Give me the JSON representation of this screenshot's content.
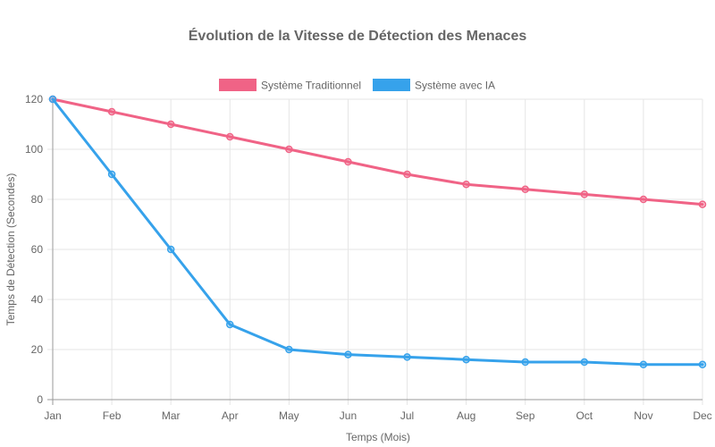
{
  "chart_data": {
    "type": "line",
    "title": "Évolution de la Vitesse de Détection des Menaces",
    "xlabel": "Temps (Mois)",
    "ylabel": "Temps de Détection (Secondes)",
    "categories": [
      "Jan",
      "Feb",
      "Mar",
      "Apr",
      "May",
      "Jun",
      "Jul",
      "Aug",
      "Sep",
      "Oct",
      "Nov",
      "Dec"
    ],
    "series": [
      {
        "name": "Système Traditionnel",
        "color": "#f06386",
        "values": [
          120,
          115,
          110,
          105,
          100,
          95,
          90,
          86,
          84,
          82,
          80,
          78
        ]
      },
      {
        "name": "Système avec IA",
        "color": "#36a2eb",
        "values": [
          120,
          90,
          60,
          30,
          20,
          18,
          17,
          16,
          15,
          15,
          14,
          14
        ]
      }
    ],
    "ylim": [
      0,
      120
    ],
    "yticks": [
      0,
      20,
      40,
      60,
      80,
      100,
      120
    ],
    "grid": true,
    "legend_position": "top"
  }
}
